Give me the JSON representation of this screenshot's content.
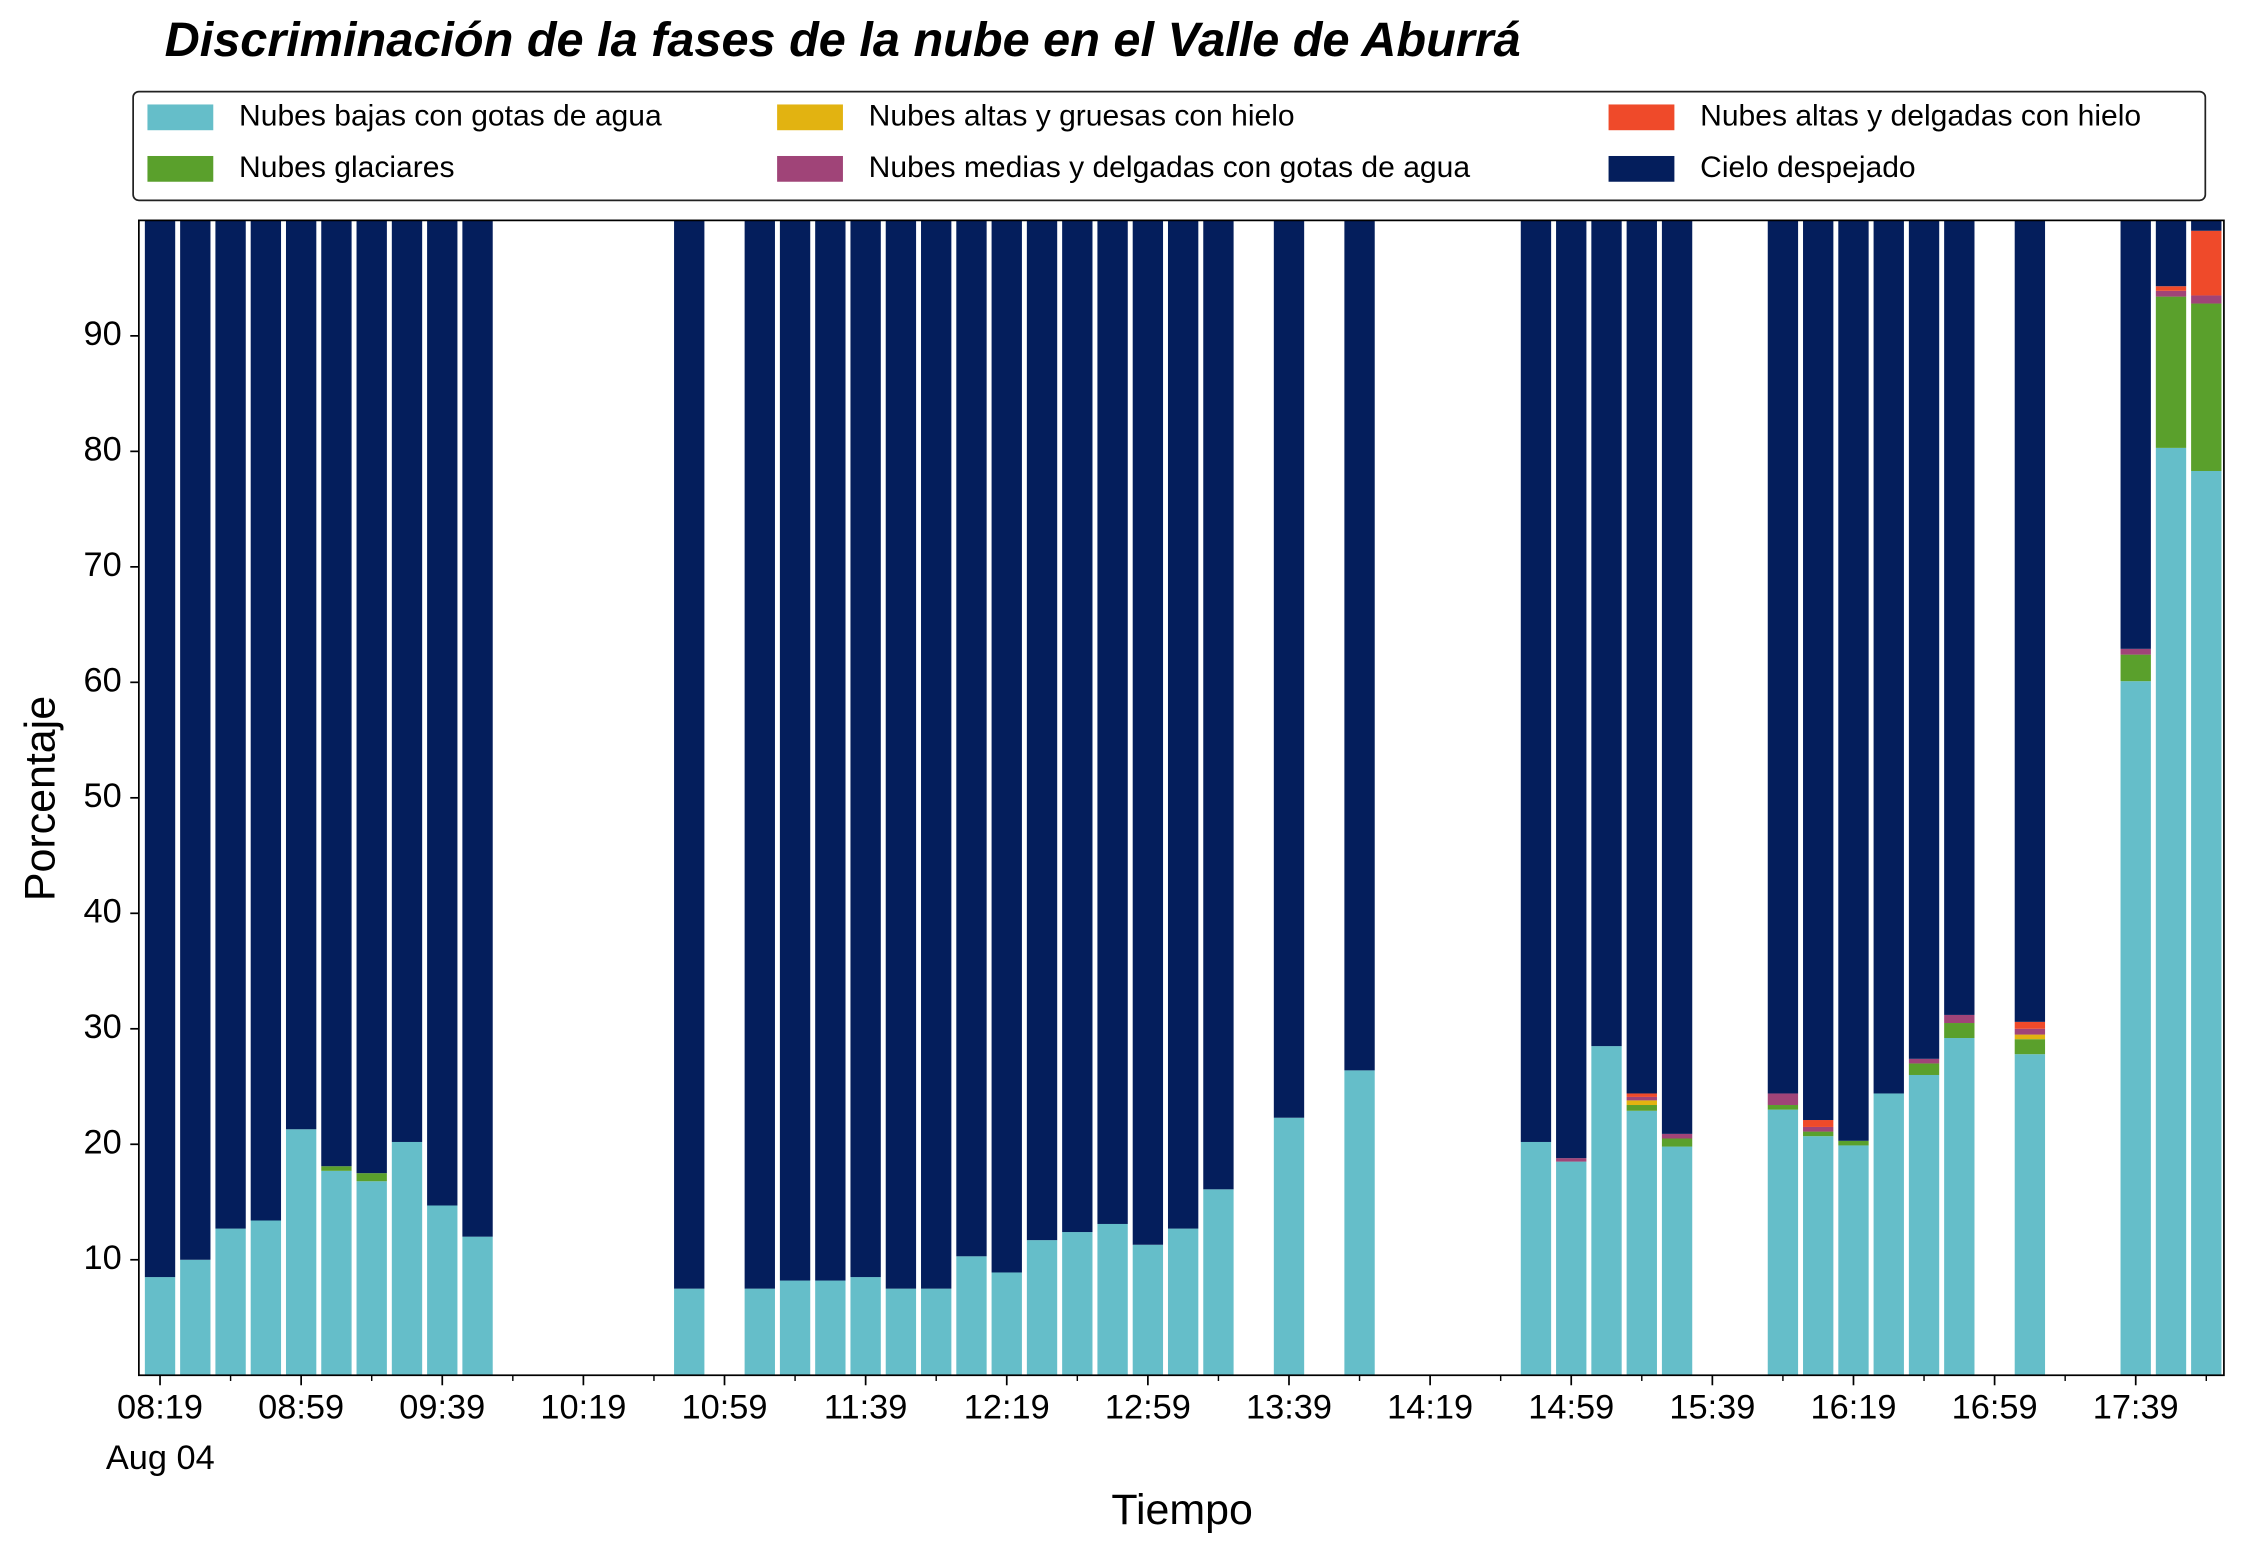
{
  "chart_data": {
    "type": "stacked_bar",
    "title": "Discriminación de la fases de la nube en el Valle de Aburrá",
    "x_label": "Tiempo",
    "y_label": "Porcentaje",
    "x_date_label": "Aug 04",
    "x": [
      "08:19",
      "08:29",
      "08:39",
      "08:49",
      "08:59",
      "09:09",
      "09:19",
      "09:29",
      "09:39",
      "09:49",
      "10:49",
      "11:09",
      "11:19",
      "11:29",
      "11:39",
      "11:49",
      "11:59",
      "12:09",
      "12:19",
      "12:29",
      "12:39",
      "12:49",
      "12:59",
      "13:09",
      "13:19",
      "13:39",
      "13:59",
      "14:49",
      "14:59",
      "15:09",
      "15:19",
      "15:29",
      "15:59",
      "16:09",
      "16:19",
      "16:29",
      "16:39",
      "16:49",
      "17:09",
      "17:39",
      "17:49",
      "17:59"
    ],
    "series": [
      {
        "name": "Nubes bajas con gotas de agua",
        "color": "#65bec9",
        "values": [
          8.5,
          10,
          12.7,
          13.4,
          21.3,
          17.7,
          16.8,
          20.2,
          14.7,
          12,
          7.5,
          7.5,
          8.2,
          8.2,
          8.5,
          7.5,
          7.5,
          10.3,
          8.9,
          11.7,
          12.4,
          13.1,
          11.3,
          12.7,
          16.1,
          22.3,
          26.4,
          20.2,
          18.5,
          28.5,
          22.9,
          19.8,
          23.0,
          20.7,
          19.9,
          24.4,
          26.0,
          29.2,
          27.8,
          60.1,
          80.3,
          78.3
        ]
      },
      {
        "name": "Nubes glaciares",
        "color": "#5aa02c",
        "values": [
          0,
          0,
          0,
          0,
          0,
          0.4,
          0.7,
          0,
          0,
          0,
          0,
          0,
          0,
          0,
          0,
          0,
          0,
          0,
          0,
          0,
          0,
          0,
          0,
          0,
          0,
          0,
          0,
          0,
          0,
          0,
          0.5,
          0.7,
          0.4,
          0.4,
          0.4,
          0,
          1.0,
          1.3,
          1.3,
          2.3,
          13.1,
          14.5
        ]
      },
      {
        "name": "Nubes altas y gruesas con hielo",
        "color": "#e2b311",
        "values": [
          0,
          0,
          0,
          0,
          0,
          0,
          0,
          0,
          0,
          0,
          0,
          0,
          0,
          0,
          0,
          0,
          0,
          0,
          0,
          0,
          0,
          0,
          0,
          0,
          0,
          0,
          0,
          0,
          0,
          0,
          0.4,
          0,
          0,
          0,
          0,
          0,
          0,
          0,
          0.4,
          0,
          0,
          0
        ]
      },
      {
        "name": "Nubes medias y delgadas con gotas de agua",
        "color": "#a04478",
        "values": [
          0,
          0,
          0,
          0,
          0,
          0,
          0,
          0,
          0,
          0,
          0,
          0,
          0,
          0,
          0,
          0,
          0,
          0,
          0,
          0,
          0,
          0,
          0,
          0,
          0,
          0,
          0,
          0,
          0.3,
          0,
          0.3,
          0.4,
          1.0,
          0.4,
          0,
          0,
          0.4,
          0.7,
          0.5,
          0.5,
          0.5,
          0.7
        ]
      },
      {
        "name": "Nubes altas y delgadas con hielo",
        "color": "#ef4a2a",
        "values": [
          0,
          0,
          0,
          0,
          0,
          0,
          0,
          0,
          0,
          0,
          0,
          0,
          0,
          0,
          0,
          0,
          0,
          0,
          0,
          0,
          0,
          0,
          0,
          0,
          0,
          0,
          0,
          0,
          0,
          0,
          0.3,
          0,
          0,
          0.6,
          0,
          0,
          0,
          0,
          0.6,
          0,
          0.4,
          5.6
        ]
      },
      {
        "name": "Cielo despejado",
        "color": "#041e5c",
        "values": [
          91.5,
          90,
          87.3,
          86.6,
          78.7,
          81.9,
          82.5,
          79.8,
          85.3,
          88,
          92.5,
          92.5,
          91.8,
          91.8,
          91.5,
          92.5,
          92.5,
          89.7,
          91.1,
          88.3,
          87.6,
          86.9,
          88.7,
          87.3,
          83.9,
          77.7,
          73.6,
          79.8,
          81.2,
          71.5,
          75.6,
          79.1,
          75.6,
          77.9,
          79.7,
          75.6,
          72.6,
          68.8,
          69.4,
          37.1,
          5.7,
          0.9
        ]
      }
    ],
    "xlim": [
      "08:13",
      "18:04"
    ],
    "xticks": [
      "08:19",
      "08:59",
      "09:39",
      "10:19",
      "10:59",
      "11:39",
      "12:19",
      "12:59",
      "13:39",
      "14:19",
      "14:59",
      "15:39",
      "16:19",
      "16:59",
      "17:39"
    ],
    "xticks_minor": [
      "08:39",
      "09:19",
      "09:59",
      "10:39",
      "11:19",
      "11:59",
      "12:39",
      "13:19",
      "13:59",
      "14:39",
      "15:19",
      "15:59",
      "16:39",
      "17:19",
      "17:59"
    ],
    "ylim": [
      0,
      100
    ],
    "yticks": [
      10,
      20,
      30,
      40,
      50,
      60,
      70,
      80,
      90
    ],
    "legend": "top"
  }
}
